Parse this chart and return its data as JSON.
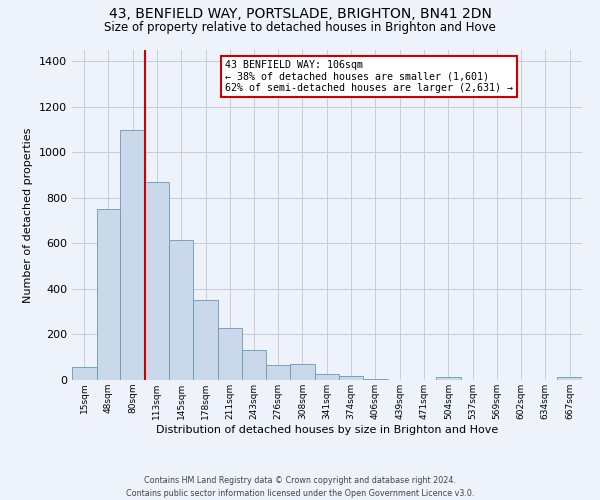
{
  "title": "43, BENFIELD WAY, PORTSLADE, BRIGHTON, BN41 2DN",
  "subtitle": "Size of property relative to detached houses in Brighton and Hove",
  "xlabel": "Distribution of detached houses by size in Brighton and Hove",
  "ylabel": "Number of detached properties",
  "footnote1": "Contains HM Land Registry data © Crown copyright and database right 2024.",
  "footnote2": "Contains public sector information licensed under the Open Government Licence v3.0.",
  "bin_labels": [
    "15sqm",
    "48sqm",
    "80sqm",
    "113sqm",
    "145sqm",
    "178sqm",
    "211sqm",
    "243sqm",
    "276sqm",
    "308sqm",
    "341sqm",
    "374sqm",
    "406sqm",
    "439sqm",
    "471sqm",
    "504sqm",
    "537sqm",
    "569sqm",
    "602sqm",
    "634sqm",
    "667sqm"
  ],
  "bar_values": [
    55,
    750,
    1100,
    870,
    615,
    350,
    230,
    130,
    65,
    70,
    25,
    18,
    5,
    0,
    0,
    12,
    0,
    0,
    0,
    0,
    12
  ],
  "bar_color": "#c9d9ea",
  "bar_edge_color": "#6699bb",
  "vline_color": "#cc0000",
  "annotation_title": "43 BENFIELD WAY: 106sqm",
  "annotation_line1": "← 38% of detached houses are smaller (1,601)",
  "annotation_line2": "62% of semi-detached houses are larger (2,631) →",
  "annotation_box_color": "#ffffff",
  "annotation_box_edge": "#cc0000",
  "ylim": [
    0,
    1450
  ],
  "yticks": [
    0,
    200,
    400,
    600,
    800,
    1000,
    1200,
    1400
  ],
  "background_color": "#eef2fa",
  "grid_color": "#c8ccd8",
  "bin_edges": [
    15,
    48,
    80,
    113,
    145,
    178,
    211,
    243,
    276,
    308,
    341,
    374,
    406,
    439,
    471,
    504,
    537,
    569,
    602,
    634,
    667,
    700
  ]
}
